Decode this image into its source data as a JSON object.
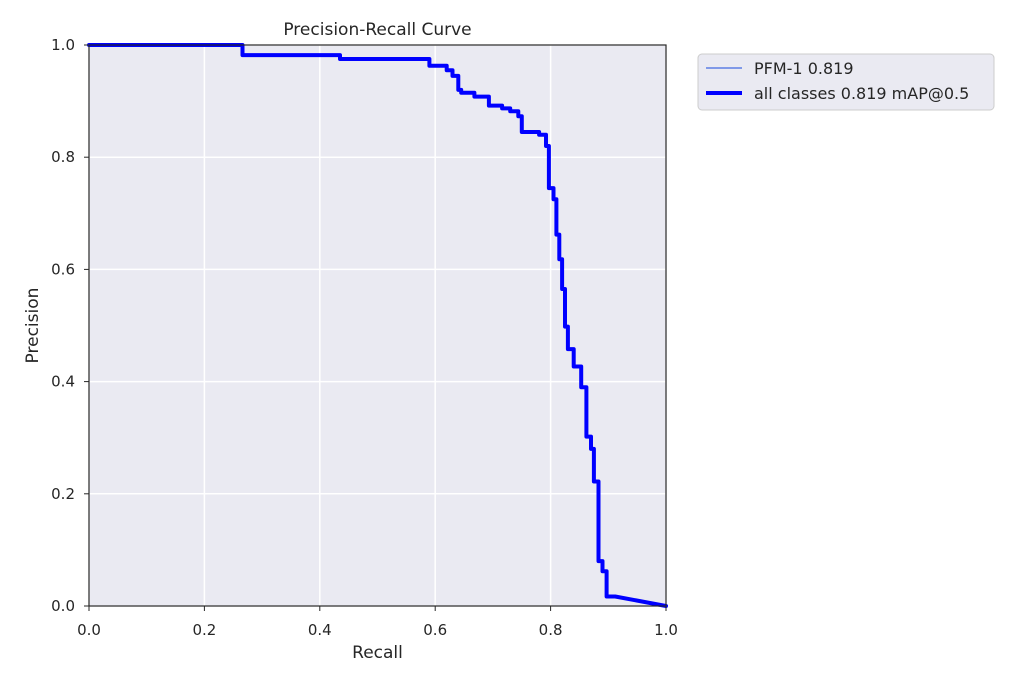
{
  "chart_data": {
    "type": "line",
    "title": "Precision-Recall Curve",
    "xlabel": "Recall",
    "ylabel": "Precision",
    "xlim": [
      0,
      1
    ],
    "ylim": [
      0,
      1
    ],
    "xticks": [
      "0.0",
      "0.2",
      "0.4",
      "0.6",
      "0.8",
      "1.0"
    ],
    "yticks": [
      "0.0",
      "0.2",
      "0.4",
      "0.6",
      "0.8",
      "1.0"
    ],
    "grid": true,
    "legend_position": "outside-top-right",
    "background_color": "#eaeaf2",
    "series": [
      {
        "name": "PFM-1 0.819",
        "color": "#4169e1",
        "line_width": "thin",
        "x": [
          0.0,
          0.266,
          0.266,
          0.435,
          0.435,
          0.59,
          0.59,
          0.62,
          0.62,
          0.63,
          0.63,
          0.64,
          0.64,
          0.645,
          0.645,
          0.668,
          0.668,
          0.693,
          0.693,
          0.716,
          0.716,
          0.73,
          0.73,
          0.744,
          0.744,
          0.75,
          0.75,
          0.78,
          0.78,
          0.792,
          0.792,
          0.797,
          0.797,
          0.805,
          0.805,
          0.81,
          0.81,
          0.815,
          0.815,
          0.82,
          0.82,
          0.825,
          0.825,
          0.83,
          0.83,
          0.84,
          0.84,
          0.853,
          0.853,
          0.862,
          0.862,
          0.87,
          0.87,
          0.875,
          0.875,
          0.883,
          0.883,
          0.89,
          0.89,
          0.897,
          0.897,
          0.907,
          0.907,
          0.912,
          1.0
        ],
        "y": [
          1.0,
          1.0,
          0.982,
          0.982,
          0.975,
          0.975,
          0.963,
          0.963,
          0.955,
          0.955,
          0.945,
          0.945,
          0.92,
          0.92,
          0.915,
          0.915,
          0.908,
          0.908,
          0.892,
          0.892,
          0.887,
          0.887,
          0.882,
          0.882,
          0.873,
          0.873,
          0.845,
          0.845,
          0.84,
          0.84,
          0.82,
          0.82,
          0.745,
          0.745,
          0.725,
          0.725,
          0.662,
          0.662,
          0.618,
          0.618,
          0.565,
          0.565,
          0.498,
          0.498,
          0.458,
          0.458,
          0.427,
          0.427,
          0.39,
          0.39,
          0.302,
          0.302,
          0.28,
          0.28,
          0.222,
          0.222,
          0.08,
          0.08,
          0.062,
          0.062,
          0.017,
          0.017,
          0.017,
          0.017,
          0.0
        ]
      },
      {
        "name": "all classes 0.819 mAP@0.5",
        "color": "#0000ff",
        "line_width": "thick",
        "x": [
          0.0,
          0.266,
          0.266,
          0.435,
          0.435,
          0.59,
          0.59,
          0.62,
          0.62,
          0.63,
          0.63,
          0.64,
          0.64,
          0.645,
          0.645,
          0.668,
          0.668,
          0.693,
          0.693,
          0.716,
          0.716,
          0.73,
          0.73,
          0.744,
          0.744,
          0.75,
          0.75,
          0.78,
          0.78,
          0.792,
          0.792,
          0.797,
          0.797,
          0.805,
          0.805,
          0.81,
          0.81,
          0.815,
          0.815,
          0.82,
          0.82,
          0.825,
          0.825,
          0.83,
          0.83,
          0.84,
          0.84,
          0.853,
          0.853,
          0.862,
          0.862,
          0.87,
          0.87,
          0.875,
          0.875,
          0.883,
          0.883,
          0.89,
          0.89,
          0.897,
          0.897,
          0.907,
          0.907,
          0.912,
          1.0
        ],
        "y": [
          1.0,
          1.0,
          0.982,
          0.982,
          0.975,
          0.975,
          0.963,
          0.963,
          0.955,
          0.955,
          0.945,
          0.945,
          0.92,
          0.92,
          0.915,
          0.915,
          0.908,
          0.908,
          0.892,
          0.892,
          0.887,
          0.887,
          0.882,
          0.882,
          0.873,
          0.873,
          0.845,
          0.845,
          0.84,
          0.84,
          0.82,
          0.82,
          0.745,
          0.745,
          0.725,
          0.725,
          0.662,
          0.662,
          0.618,
          0.618,
          0.565,
          0.565,
          0.498,
          0.498,
          0.458,
          0.458,
          0.427,
          0.427,
          0.39,
          0.39,
          0.302,
          0.302,
          0.28,
          0.28,
          0.222,
          0.222,
          0.08,
          0.08,
          0.062,
          0.062,
          0.017,
          0.017,
          0.017,
          0.017,
          0.0
        ]
      }
    ]
  }
}
